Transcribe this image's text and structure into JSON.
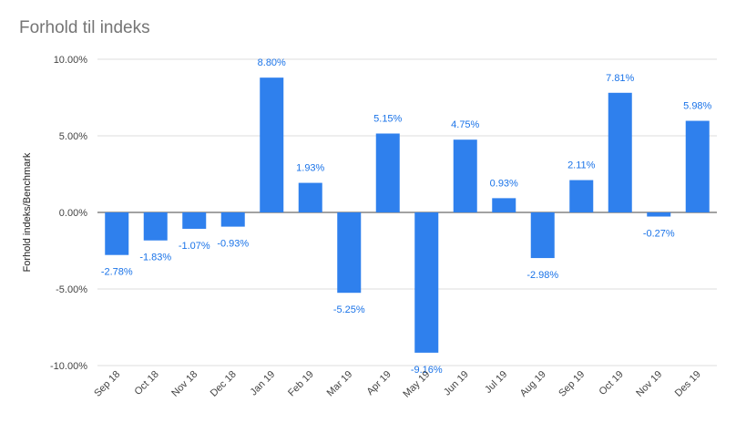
{
  "chart_data": {
    "type": "bar",
    "title": "Forhold til indeks",
    "xlabel": "",
    "ylabel": "Forhold indeks/Benchmark",
    "ylim": [
      -10,
      10
    ],
    "yticks": [
      10,
      5,
      0,
      -5,
      -10
    ],
    "ytick_labels": [
      "10.00%",
      "5.00%",
      "0.00%",
      "-5.00%",
      "-10.00%"
    ],
    "categories": [
      "Sep 18",
      "Oct 18",
      "Nov 18",
      "Dec 18",
      "Jan 19",
      "Feb 19",
      "Mar 19",
      "Apr 19",
      "May 19",
      "Jun 19",
      "Jul 19",
      "Aug 19",
      "Sep 19",
      "Oct 19",
      "Nov 19",
      "Des 19"
    ],
    "values": [
      -2.78,
      -1.83,
      -1.07,
      -0.93,
      8.8,
      1.93,
      -5.25,
      5.15,
      -9.16,
      4.75,
      0.93,
      -2.98,
      2.11,
      7.81,
      -0.27,
      5.98
    ],
    "data_labels": [
      "-2.78%",
      "-1.83%",
      "-1.07%",
      "-0.93%",
      "8.80%",
      "1.93%",
      "-5.25%",
      "5.15%",
      "-9.16%",
      "4.75%",
      "0.93%",
      "-2.98%",
      "2.11%",
      "7.81%",
      "-0.27%",
      "5.98%"
    ],
    "grid": true,
    "legend": "none",
    "bar_color": "#2f80ed",
    "label_color": "#1a73e8"
  }
}
